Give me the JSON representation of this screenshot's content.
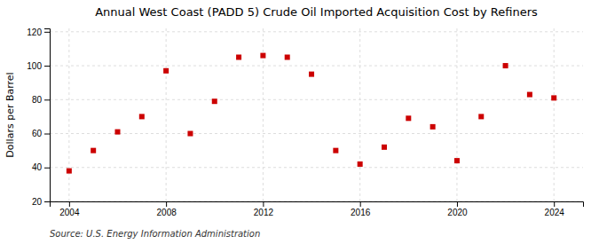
{
  "chart_data": {
    "type": "scatter",
    "title": "Annual West Coast (PADD 5) Crude Oil Imported Acquisition Cost by Refiners",
    "y_label": "Dollars per Barrel",
    "annotations": [
      "Source: U.S. Energy Information Administration"
    ],
    "x": [
      2004,
      2005,
      2006,
      2007,
      2008,
      2009,
      2010,
      2011,
      2012,
      2013,
      2014,
      2015,
      2016,
      2017,
      2018,
      2019,
      2020,
      2021,
      2022,
      2023,
      2024
    ],
    "values": [
      38,
      50,
      61,
      70,
      97,
      60,
      79,
      105,
      106,
      105,
      95,
      50,
      42,
      52,
      69,
      64,
      44,
      70,
      100,
      83,
      81
    ],
    "color": "#cc0000",
    "marker": "square",
    "xlim": [
      2003.2,
      2025.2
    ],
    "ylim": [
      20,
      122
    ],
    "xticks": [
      2004,
      2008,
      2012,
      2016,
      2020,
      2024
    ],
    "yticks": [
      20,
      40,
      60,
      80,
      100,
      120
    ],
    "grid": true
  }
}
